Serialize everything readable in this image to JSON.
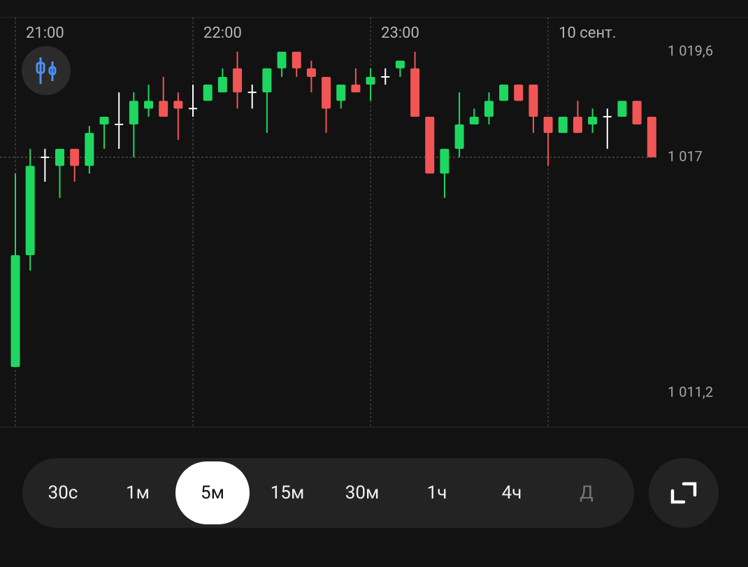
{
  "chart_data": {
    "type": "candlestick",
    "categories": [
      "21:00",
      null,
      null,
      null,
      null,
      null,
      null,
      null,
      null,
      null,
      null,
      null,
      "22:00",
      null,
      null,
      null,
      null,
      null,
      null,
      null,
      null,
      null,
      null,
      null,
      "23:00",
      null,
      null,
      null,
      null,
      null,
      null,
      null,
      null,
      null,
      null,
      null,
      "10 сент.",
      null,
      null,
      null,
      null,
      null,
      null,
      null
    ],
    "open": [
      1011.84,
      1014.59,
      1017.0,
      1016.79,
      1017.21,
      1016.79,
      1017.81,
      1017.81,
      1017.81,
      1018.2,
      1018.39,
      1018.39,
      1018.2,
      1018.39,
      1018.6,
      1019.19,
      1018.6,
      1018.6,
      1019.19,
      1019.6,
      1019.19,
      1018.98,
      1018.39,
      1018.79,
      1018.79,
      1018.98,
      1019.19,
      1019.19,
      1018.0,
      1016.6,
      1017.21,
      1017.81,
      1018.0,
      1018.39,
      1018.79,
      1018.79,
      1018.0,
      1017.6,
      1018.0,
      1017.81,
      1018.0,
      1018.0,
      1018.39,
      1018.0
    ],
    "high": [
      1016.6,
      1017.21,
      1017.21,
      1017.21,
      1017.21,
      1017.77,
      1018.0,
      1018.6,
      1018.6,
      1018.79,
      1018.98,
      1018.6,
      1018.79,
      1018.79,
      1019.19,
      1019.6,
      1018.79,
      1019.19,
      1019.6,
      1019.6,
      1019.38,
      1018.98,
      1018.79,
      1019.19,
      1019.19,
      1019.19,
      1019.38,
      1019.6,
      1018.0,
      1017.21,
      1018.6,
      1018.2,
      1018.6,
      1018.79,
      1018.79,
      1018.79,
      1018.0,
      1018.0,
      1018.39,
      1018.2,
      1018.2,
      1018.39,
      1018.39,
      1018.0
    ],
    "low": [
      1011.84,
      1014.21,
      1016.4,
      1016.0,
      1016.4,
      1016.6,
      1017.21,
      1017.21,
      1017.0,
      1018.0,
      1018.0,
      1017.43,
      1018.0,
      1018.39,
      1018.6,
      1018.2,
      1018.2,
      1017.6,
      1018.98,
      1018.98,
      1018.6,
      1017.6,
      1018.2,
      1018.6,
      1018.39,
      1018.79,
      1018.98,
      1018.0,
      1016.6,
      1016.0,
      1017.0,
      1017.81,
      1017.81,
      1018.39,
      1018.39,
      1017.6,
      1016.79,
      1017.6,
      1017.6,
      1017.6,
      1017.21,
      1018.0,
      1017.81,
      1017.0
    ],
    "close": [
      1014.59,
      1016.79,
      1017.0,
      1017.21,
      1016.79,
      1017.6,
      1018.0,
      1017.81,
      1018.39,
      1018.39,
      1018.0,
      1018.2,
      1018.2,
      1018.79,
      1018.98,
      1018.6,
      1018.6,
      1019.19,
      1019.6,
      1019.19,
      1018.98,
      1018.2,
      1018.79,
      1018.6,
      1018.98,
      1018.98,
      1019.38,
      1018.0,
      1016.6,
      1017.21,
      1017.81,
      1018.0,
      1018.39,
      1018.79,
      1018.39,
      1018.0,
      1017.6,
      1018.0,
      1017.6,
      1018.0,
      1018.0,
      1018.39,
      1017.81,
      1017.0
    ],
    "up_color": "#1ed760",
    "down_color": "#f25555",
    "flat_color": "#ffffff",
    "ylim": [
      1010.4,
      1020.4
    ],
    "yticks": [
      {
        "value": 1011.2,
        "label": "1 011,2"
      },
      {
        "value": 1017,
        "label": "1 017"
      },
      {
        "value": 1019.6,
        "label": "1 019,6"
      }
    ]
  },
  "timeframes": {
    "options": [
      "30с",
      "1м",
      "5м",
      "15м",
      "30м",
      "1ч",
      "4ч",
      "Д"
    ],
    "selected": "5м"
  }
}
